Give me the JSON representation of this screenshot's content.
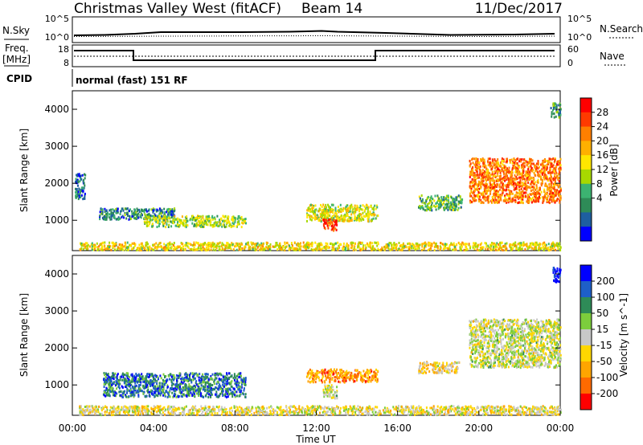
{
  "header": {
    "station": "Christmas Valley West (fitACF)",
    "beam": "Beam 14",
    "date": "11/Dec/2017"
  },
  "top_panels": {
    "nsky_label": "N.Sky",
    "nsky_ticks": [
      "10^5",
      "10^0"
    ],
    "nsearch_label": "N.Search",
    "nsearch_ticks": [
      "10^5",
      "10^0"
    ],
    "freq_label": "Freq.",
    "freq_unit": "[MHz]",
    "freq_ticks": [
      "18",
      "8"
    ],
    "nave_label": "Nave",
    "nave_ticks": [
      "60",
      "0"
    ],
    "cpid_label": "CPID",
    "cpid_text": "normal (fast) 151 RF"
  },
  "chart_data": [
    {
      "type": "heatmap",
      "title": "",
      "ylabel": "Slant Range [km]",
      "xlabel": "",
      "ylim": [
        180,
        4500
      ],
      "y_ticks": [
        "1000",
        "2000",
        "3000",
        "4000"
      ],
      "colorbar_label": "Power [dB]",
      "colorbar_ticks": [
        "28",
        "24",
        "20",
        "16",
        "12",
        "8",
        "4"
      ],
      "colorbar_colors": [
        "#ff0000",
        "#ff3a00",
        "#ff7f00",
        "#ffb000",
        "#ffe600",
        "#a8d800",
        "#3cb371",
        "#2e8b57",
        "#1e5fa0",
        "#0000ff"
      ],
      "regions": [
        {
          "x0": 0.3,
          "x1": 24.0,
          "y0": 220,
          "y1": 430,
          "level": 0.55
        },
        {
          "x0": 1.3,
          "x1": 5.0,
          "y0": 1050,
          "y1": 1350,
          "level": 0.25
        },
        {
          "x0": 3.5,
          "x1": 8.5,
          "y0": 850,
          "y1": 1150,
          "level": 0.45
        },
        {
          "x0": 11.5,
          "x1": 15.0,
          "y0": 1000,
          "y1": 1450,
          "level": 0.5
        },
        {
          "x0": 12.3,
          "x1": 13.0,
          "y0": 750,
          "y1": 1050,
          "level": 0.85
        },
        {
          "x0": 17.0,
          "x1": 19.2,
          "y0": 1300,
          "y1": 1700,
          "level": 0.35
        },
        {
          "x0": 19.5,
          "x1": 24.0,
          "y0": 1500,
          "y1": 2700,
          "level": 0.75
        },
        {
          "x0": 0.1,
          "x1": 0.6,
          "y0": 1600,
          "y1": 2300,
          "level": 0.2
        },
        {
          "x0": 23.5,
          "x1": 24.0,
          "y0": 3800,
          "y1": 4200,
          "level": 0.3
        }
      ]
    },
    {
      "type": "heatmap",
      "title": "",
      "ylabel": "Slant Range [km]",
      "xlabel": "Time UT",
      "ylim": [
        180,
        4500
      ],
      "y_ticks": [
        "1000",
        "2000",
        "3000",
        "4000"
      ],
      "x_ticks": [
        "00:00",
        "04:00",
        "08:00",
        "12:00",
        "16:00",
        "20:00",
        "00:00"
      ],
      "colorbar_label": "Velocity [m s^-1]",
      "colorbar_ticks": [
        "200",
        "100",
        "50",
        "15",
        "-15",
        "-50",
        "-100",
        "-200"
      ],
      "colorbar_colors": [
        "#0000ff",
        "#1e5fc8",
        "#2e8b57",
        "#7ccd3c",
        "#c8c8c8",
        "#ffd700",
        "#ffa500",
        "#ff6a00",
        "#ff0000"
      ],
      "regions": [
        {
          "x0": 0.3,
          "x1": 24.0,
          "y0": 220,
          "y1": 460,
          "level": 0.45
        },
        {
          "x0": 1.5,
          "x1": 8.5,
          "y0": 700,
          "y1": 1350,
          "level": 0.78
        },
        {
          "x0": 11.5,
          "x1": 15.0,
          "y0": 1100,
          "y1": 1450,
          "level": 0.25
        },
        {
          "x0": 12.3,
          "x1": 13.0,
          "y0": 650,
          "y1": 1050,
          "level": 0.5
        },
        {
          "x0": 17.0,
          "x1": 19.0,
          "y0": 1350,
          "y1": 1650,
          "level": 0.4
        },
        {
          "x0": 19.5,
          "x1": 24.0,
          "y0": 1500,
          "y1": 2800,
          "level": 0.5
        },
        {
          "x0": 23.6,
          "x1": 24.0,
          "y0": 3800,
          "y1": 4200,
          "level": 0.97
        }
      ]
    }
  ]
}
